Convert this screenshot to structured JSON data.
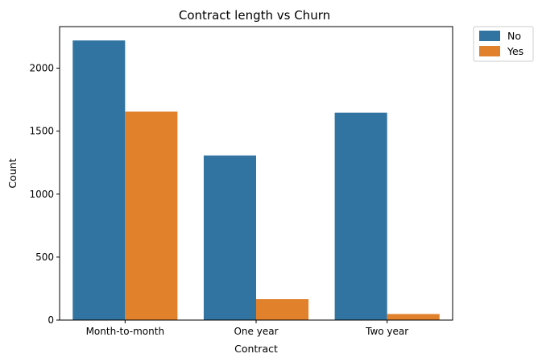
{
  "chart_data": {
    "type": "bar",
    "title": "Contract length vs Churn",
    "xlabel": "Contract",
    "ylabel": "Count",
    "categories": [
      "Month-to-month",
      "One year",
      "Two year"
    ],
    "series": [
      {
        "name": "No",
        "values": [
          2220,
          1307,
          1647
        ],
        "color": "#3274a1"
      },
      {
        "name": "Yes",
        "values": [
          1655,
          166,
          48
        ],
        "color": "#e1812c"
      }
    ],
    "ylim": [
      0,
      2330
    ],
    "yticks": [
      0,
      500,
      1000,
      1500,
      2000
    ],
    "grid": false,
    "legend_position": "outside-top-right"
  }
}
